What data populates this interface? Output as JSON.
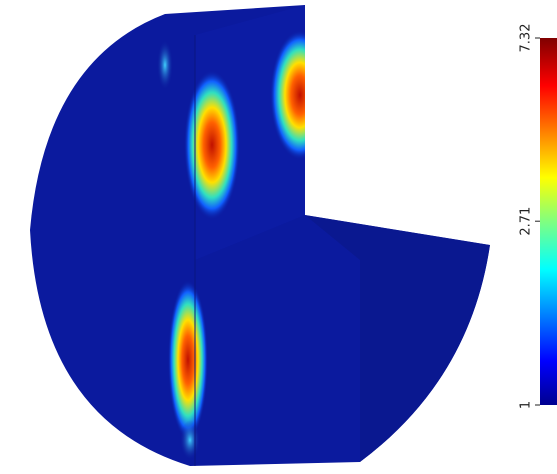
{
  "chart_data": {
    "type": "colorbar",
    "ylim": [
      1,
      7.32
    ],
    "yticks": [
      1,
      2.71,
      7.32
    ],
    "log_scale": true
  }
}
